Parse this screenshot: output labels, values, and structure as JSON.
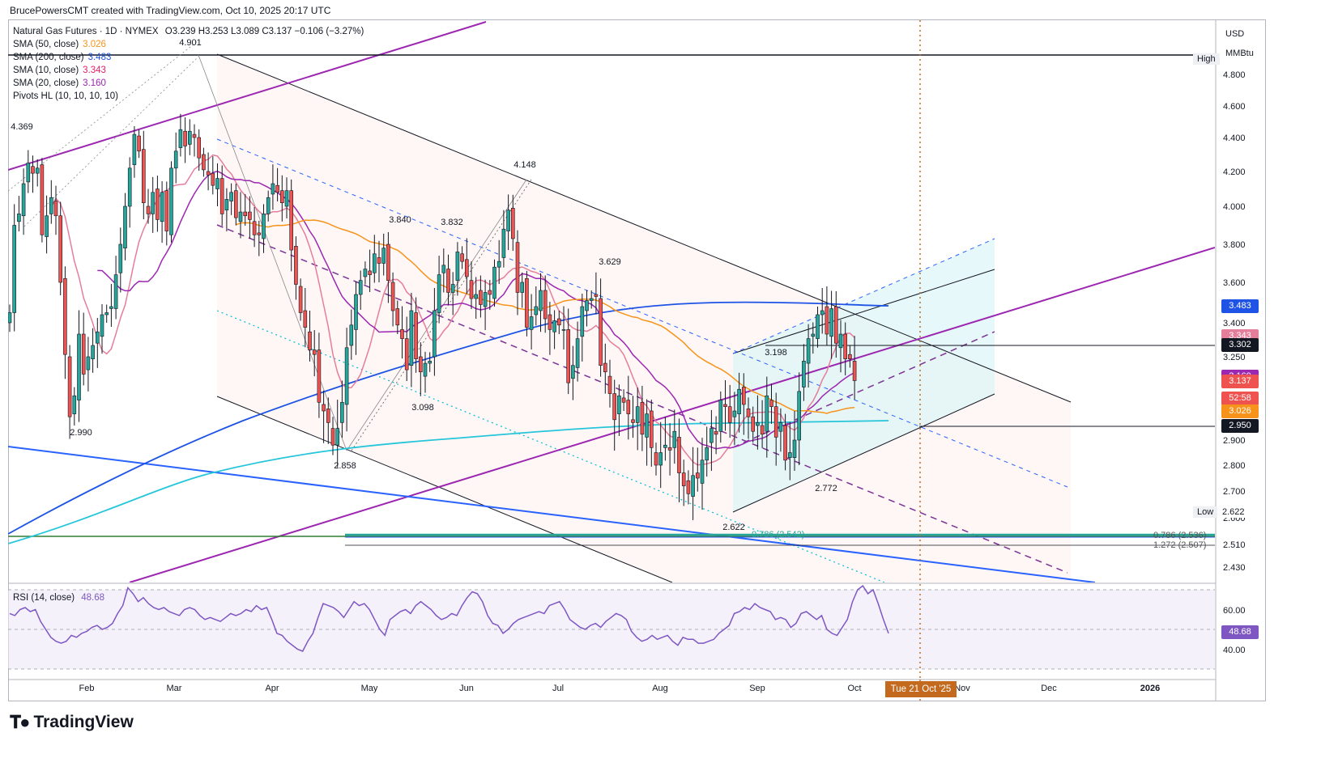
{
  "attribution": "BrucePowersCMT created with TradingView.com, Oct 10, 2025 20:17 UTC",
  "logo_text": "TradingView",
  "logo_icon": "tradingview-logo-icon",
  "legend": {
    "title": "Natural Gas Futures · 1D · NYMEX",
    "ohlc": "O3.239 H3.253 L3.089 C3.137 −0.106 (−3.27%)",
    "indicators": [
      {
        "label": "SMA (50, close)",
        "value": "3.026",
        "color": "#f7931a"
      },
      {
        "label": "SMA (200, close)",
        "value": "3.483",
        "color": "#1e53e5"
      },
      {
        "label": "SMA (10, close)",
        "value": "3.343",
        "color": "#e91e63"
      },
      {
        "label": "SMA (20, close)",
        "value": "3.160",
        "color": "#9c27b0"
      },
      {
        "label": "Pivots HL (10, 10, 10, 10)",
        "value": "",
        "color": "#131722"
      }
    ]
  },
  "price_axis": {
    "currency": "USD",
    "unit": "MMBtu",
    "ticks": [
      "4.800",
      "4.600",
      "4.400",
      "4.200",
      "4.000",
      "3.800",
      "3.600",
      "3.400",
      "3.250",
      "3.000",
      "2.900",
      "2.800",
      "2.700",
      "2.600",
      "2.510",
      "2.430"
    ]
  },
  "price_tags": [
    {
      "text": "3.483",
      "price": 3.483,
      "color": "#1e53e5"
    },
    {
      "text": "3.343",
      "price": 3.343,
      "color": "#e57e9b"
    },
    {
      "text": "3.302",
      "price": 3.302,
      "color": "#131722"
    },
    {
      "text": "3.160",
      "price": 3.16,
      "color": "#9c27b0"
    },
    {
      "text": "3.137",
      "price": 3.137,
      "color": "#ef5350"
    },
    {
      "text": "52:58",
      "price": 3.06,
      "color": "#ef5350"
    },
    {
      "text": "3.026",
      "price": 3.0,
      "color": "#f7931a"
    },
    {
      "text": "2.950",
      "price": 2.95,
      "color": "#131722"
    }
  ],
  "right_labels": {
    "high": "High",
    "low": "Low",
    "low_value": "2.622",
    "fib_786": "0.786 (2.536)",
    "fib_1272": "1.272 (2.507)",
    "fib_left": "0.786 (2.542)"
  },
  "date_badge": "Tue 21 Oct '25",
  "rsi": {
    "label": "RSI (14, close)",
    "value": "48.68",
    "ticks": [
      "60.00",
      "40.00"
    ],
    "series": [
      58,
      57,
      60,
      61,
      59,
      60,
      54,
      50,
      46,
      44,
      43,
      44,
      47,
      46,
      48,
      49,
      51,
      52,
      50,
      51,
      53,
      58,
      62,
      71,
      68,
      64,
      66,
      63,
      61,
      60,
      61,
      59,
      58,
      57,
      60,
      61,
      60,
      57,
      55,
      56,
      55,
      54,
      56,
      58,
      57,
      58,
      60,
      59,
      62,
      60,
      61,
      55,
      48,
      47,
      44,
      42,
      40,
      39,
      44,
      48,
      56,
      63,
      62,
      61,
      59,
      56,
      60,
      64,
      62,
      63,
      60,
      55,
      50,
      47,
      55,
      57,
      59,
      60,
      58,
      62,
      64,
      62,
      60,
      57,
      55,
      56,
      58,
      57,
      62,
      66,
      69,
      68,
      64,
      57,
      53,
      52,
      48,
      50,
      53,
      55,
      56,
      57,
      58,
      59,
      58,
      62,
      63,
      64,
      60,
      55,
      53,
      51,
      50,
      52,
      53,
      51,
      54,
      56,
      58,
      57,
      55,
      49,
      46,
      44,
      45,
      47,
      45,
      46,
      47,
      44,
      42,
      46,
      45,
      45,
      43,
      43,
      44,
      45,
      48,
      50,
      52,
      58,
      59,
      61,
      60,
      63,
      61,
      60,
      59,
      55,
      56,
      55,
      51,
      53,
      58,
      59,
      57,
      55,
      57,
      50,
      48,
      47,
      51,
      55,
      64,
      70,
      72,
      68,
      70,
      63,
      55,
      48
    ]
  },
  "chart_data": {
    "type": "line",
    "title": "Natural Gas Futures · 1D · NYMEX",
    "x_labels": [
      "Feb",
      "Mar",
      "Apr",
      "May",
      "Jun",
      "Jul",
      "Aug",
      "Sep",
      "Oct",
      "Nov",
      "Dec",
      "2026"
    ],
    "ylim": [
      2.38,
      4.98
    ],
    "annotations": [
      "4.901",
      "4.369",
      "2.990",
      "3.840",
      "3.832",
      "3.098",
      "2.858",
      "4.148",
      "3.629",
      "3.198",
      "2.772",
      "2.622"
    ],
    "closes": [
      3.45,
      3.9,
      3.96,
      4.13,
      4.25,
      4.19,
      4.22,
      3.85,
      3.95,
      4.05,
      3.95,
      3.6,
      3.26,
      2.98,
      3.07,
      3.35,
      3.17,
      3.25,
      3.3,
      3.36,
      3.44,
      3.45,
      3.48,
      3.64,
      3.8,
      4.0,
      4.22,
      4.42,
      4.32,
      4.02,
      3.96,
      4.08,
      3.93,
      4.08,
      3.87,
      4.22,
      4.32,
      4.45,
      4.35,
      4.44,
      4.4,
      4.28,
      4.21,
      4.18,
      4.12,
      4.16,
      3.96,
      4.04,
      4.08,
      3.94,
      3.97,
      3.95,
      3.93,
      3.85,
      3.85,
      3.96,
      4.05,
      4.13,
      4.08,
      4.02,
      4.09,
      3.77,
      3.59,
      3.45,
      3.38,
      3.28,
      3.26,
      3.04,
      3.0,
      2.96,
      2.88,
      2.94,
      3.04,
      3.29,
      3.39,
      3.54,
      3.61,
      3.67,
      3.64,
      3.75,
      3.7,
      3.78,
      3.61,
      3.46,
      3.39,
      3.33,
      3.19,
      3.46,
      3.24,
      3.18,
      3.22,
      3.23,
      3.46,
      3.64,
      3.69,
      3.55,
      3.59,
      3.76,
      3.71,
      3.63,
      3.52,
      3.54,
      3.49,
      3.55,
      3.54,
      3.68,
      3.71,
      3.88,
      3.98,
      3.83,
      3.55,
      3.6,
      3.38,
      3.43,
      3.48,
      3.56,
      3.42,
      3.37,
      3.41,
      3.39,
      3.37,
      3.13,
      3.21,
      3.33,
      3.48,
      3.51,
      3.52,
      3.53,
      3.21,
      3.18,
      3.08,
      2.97,
      3.07,
      3.04,
      2.99,
      2.96,
      3.02,
      2.92,
      2.99,
      2.87,
      2.8,
      2.85,
      2.88,
      2.86,
      2.93,
      2.77,
      2.72,
      2.69,
      2.76,
      2.75,
      2.82,
      2.87,
      2.94,
      2.92,
      3.05,
      3.02,
      2.96,
      3.0,
      3.1,
      3.03,
      2.98,
      2.93,
      2.96,
      2.92,
      3.07,
      3.02,
      2.91,
      2.96,
      2.82,
      2.85,
      2.9,
      3.09,
      3.23,
      3.33,
      3.35,
      3.44,
      3.46,
      3.35,
      3.47,
      3.31,
      3.35,
      3.24,
      3.24,
      3.14
    ]
  }
}
